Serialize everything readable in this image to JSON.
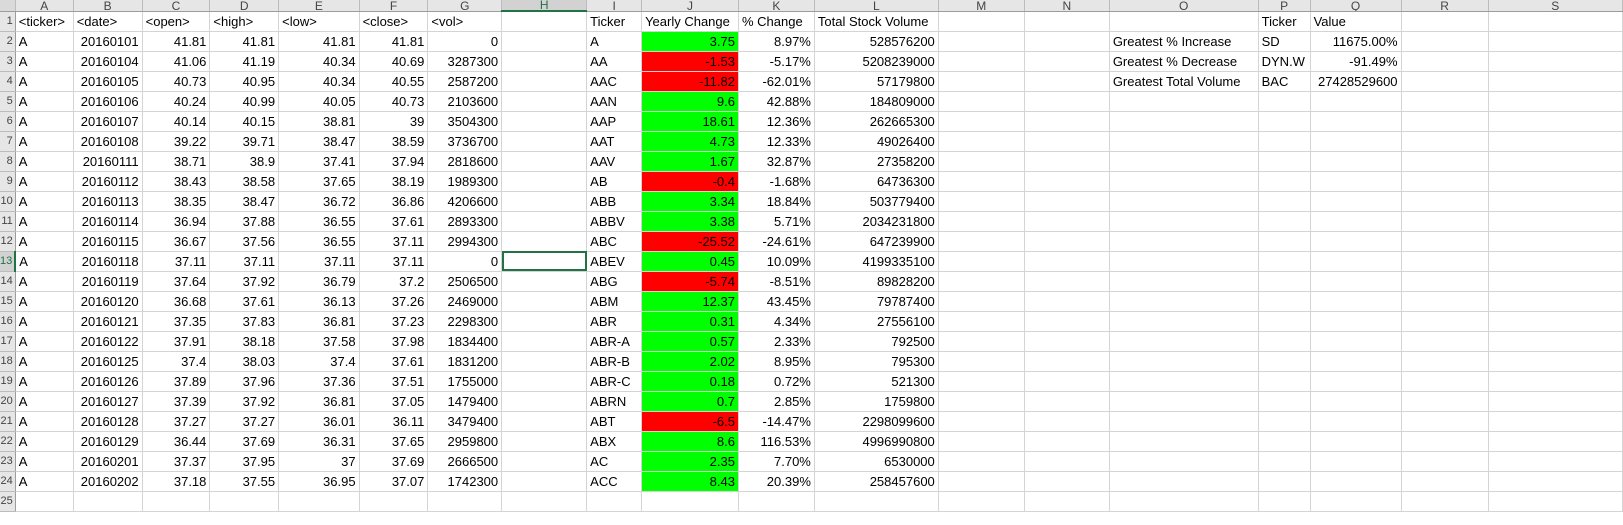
{
  "column_headers": [
    "A",
    "B",
    "C",
    "D",
    "E",
    "F",
    "G",
    "H",
    "I",
    "J",
    "K",
    "L",
    "M",
    "N",
    "O",
    "P",
    "Q",
    "R",
    "S"
  ],
  "row_numbers": [
    "1",
    "2",
    "3",
    "4",
    "5",
    "6",
    "7",
    "8",
    "9",
    "10",
    "11",
    "12",
    "13",
    "14",
    "15",
    "16",
    "17",
    "18",
    "19",
    "20",
    "21",
    "22",
    "23",
    "24",
    "25"
  ],
  "selection": {
    "column": "H",
    "row": "13"
  },
  "colors": {
    "positive_fill": "#00ff00",
    "negative_fill": "#ff0000",
    "selection": "#217346"
  },
  "raw_headers": [
    "<ticker>",
    "<date>",
    "<open>",
    "<high>",
    "<low>",
    "<close>",
    "<vol>"
  ],
  "raw_rows": [
    [
      "A",
      "20160101",
      "41.81",
      "41.81",
      "41.81",
      "41.81",
      "0"
    ],
    [
      "A",
      "20160104",
      "41.06",
      "41.19",
      "40.34",
      "40.69",
      "3287300"
    ],
    [
      "A",
      "20160105",
      "40.73",
      "40.95",
      "40.34",
      "40.55",
      "2587200"
    ],
    [
      "A",
      "20160106",
      "40.24",
      "40.99",
      "40.05",
      "40.73",
      "2103600"
    ],
    [
      "A",
      "20160107",
      "40.14",
      "40.15",
      "38.81",
      "39",
      "3504300"
    ],
    [
      "A",
      "20160108",
      "39.22",
      "39.71",
      "38.47",
      "38.59",
      "3736700"
    ],
    [
      "A",
      "20160111",
      "38.71",
      "38.9",
      "37.41",
      "37.94",
      "2818600"
    ],
    [
      "A",
      "20160112",
      "38.43",
      "38.58",
      "37.65",
      "38.19",
      "1989300"
    ],
    [
      "A",
      "20160113",
      "38.35",
      "38.47",
      "36.72",
      "36.86",
      "4206600"
    ],
    [
      "A",
      "20160114",
      "36.94",
      "37.88",
      "36.55",
      "37.61",
      "2893300"
    ],
    [
      "A",
      "20160115",
      "36.67",
      "37.56",
      "36.55",
      "37.11",
      "2994300"
    ],
    [
      "A",
      "20160118",
      "37.11",
      "37.11",
      "37.11",
      "37.11",
      "0"
    ],
    [
      "A",
      "20160119",
      "37.64",
      "37.92",
      "36.79",
      "37.2",
      "2506500"
    ],
    [
      "A",
      "20160120",
      "36.68",
      "37.61",
      "36.13",
      "37.26",
      "2469000"
    ],
    [
      "A",
      "20160121",
      "37.35",
      "37.83",
      "36.81",
      "37.23",
      "2298300"
    ],
    [
      "A",
      "20160122",
      "37.91",
      "38.18",
      "37.58",
      "37.98",
      "1834400"
    ],
    [
      "A",
      "20160125",
      "37.4",
      "38.03",
      "37.4",
      "37.61",
      "1831200"
    ],
    [
      "A",
      "20160126",
      "37.89",
      "37.96",
      "37.36",
      "37.51",
      "1755000"
    ],
    [
      "A",
      "20160127",
      "37.39",
      "37.92",
      "36.81",
      "37.05",
      "1479400"
    ],
    [
      "A",
      "20160128",
      "37.27",
      "37.27",
      "36.01",
      "36.11",
      "3479400"
    ],
    [
      "A",
      "20160129",
      "36.44",
      "37.69",
      "36.31",
      "37.65",
      "2959800"
    ],
    [
      "A",
      "20160201",
      "37.37",
      "37.95",
      "37",
      "37.69",
      "2666500"
    ],
    [
      "A",
      "20160202",
      "37.18",
      "37.55",
      "36.95",
      "37.07",
      "1742300"
    ]
  ],
  "summary_headers": [
    "Ticker",
    "Yearly Change",
    "% Change",
    "Total Stock Volume"
  ],
  "summary_rows": [
    [
      "A",
      "3.75",
      "8.97%",
      "528576200",
      "pos"
    ],
    [
      "AA",
      "-1.53",
      "-5.17%",
      "5208239000",
      "neg"
    ],
    [
      "AAC",
      "-11.82",
      "-62.01%",
      "57179800",
      "neg"
    ],
    [
      "AAN",
      "9.6",
      "42.88%",
      "184809000",
      "pos"
    ],
    [
      "AAP",
      "18.61",
      "12.36%",
      "262665300",
      "pos"
    ],
    [
      "AAT",
      "4.73",
      "12.33%",
      "49026400",
      "pos"
    ],
    [
      "AAV",
      "1.67",
      "32.87%",
      "27358200",
      "pos"
    ],
    [
      "AB",
      "-0.4",
      "-1.68%",
      "64736300",
      "neg"
    ],
    [
      "ABB",
      "3.34",
      "18.84%",
      "503779400",
      "pos"
    ],
    [
      "ABBV",
      "3.38",
      "5.71%",
      "2034231800",
      "pos"
    ],
    [
      "ABC",
      "-25.52",
      "-24.61%",
      "647239900",
      "neg"
    ],
    [
      "ABEV",
      "0.45",
      "10.09%",
      "4199335100",
      "pos"
    ],
    [
      "ABG",
      "-5.74",
      "-8.51%",
      "89828200",
      "neg"
    ],
    [
      "ABM",
      "12.37",
      "43.45%",
      "79787400",
      "pos"
    ],
    [
      "ABR",
      "0.31",
      "4.34%",
      "27556100",
      "pos"
    ],
    [
      "ABR-A",
      "0.57",
      "2.33%",
      "792500",
      "pos"
    ],
    [
      "ABR-B",
      "2.02",
      "8.95%",
      "795300",
      "pos"
    ],
    [
      "ABR-C",
      "0.18",
      "0.72%",
      "521300",
      "pos"
    ],
    [
      "ABRN",
      "0.7",
      "2.85%",
      "1759800",
      "pos"
    ],
    [
      "ABT",
      "-6.5",
      "-14.47%",
      "2298099600",
      "neg"
    ],
    [
      "ABX",
      "8.6",
      "116.53%",
      "4996990800",
      "pos"
    ],
    [
      "AC",
      "2.35",
      "7.70%",
      "6530000",
      "pos"
    ],
    [
      "ACC",
      "8.43",
      "20.39%",
      "258457600",
      "pos"
    ]
  ],
  "greatest_headers": [
    "Ticker",
    "Value"
  ],
  "greatest_rows": [
    [
      "Greatest % Increase",
      "SD",
      "11675.00%"
    ],
    [
      "Greatest % Decrease",
      "DYN.W",
      "-91.49%"
    ],
    [
      "Greatest Total Volume",
      "BAC",
      "27428529600"
    ]
  ]
}
